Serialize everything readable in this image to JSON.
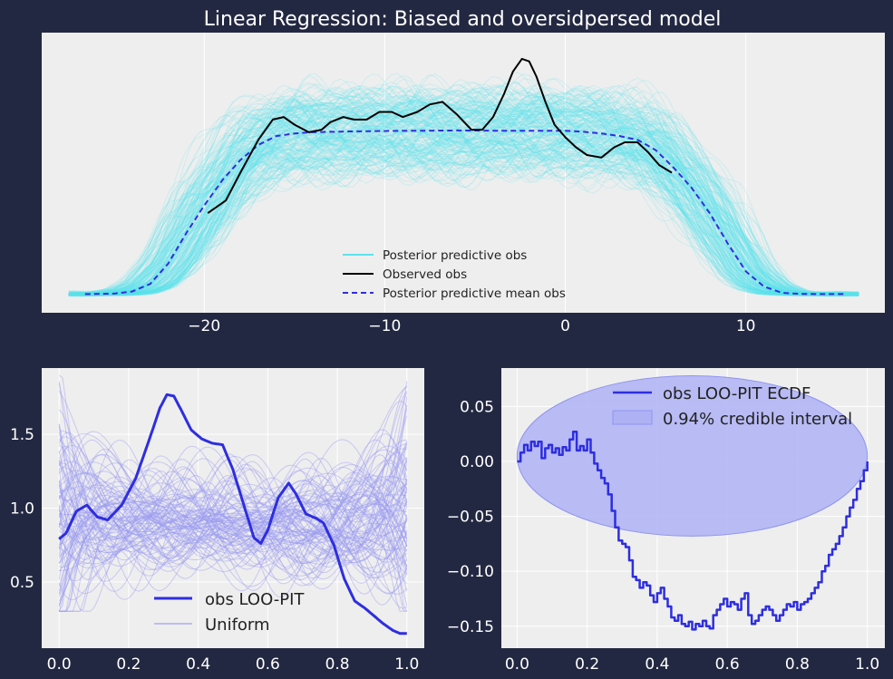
{
  "figure": {
    "title": "Linear Regression: Biased and oversidpersed model",
    "colors": {
      "background": "#232842",
      "panel": "#eeeeee",
      "grid": "#ffffff",
      "cyan": "#5de3ee",
      "observed": "#000000",
      "mean": "#2e2ee0",
      "pit": "#2e2ee0",
      "uniform": "#9a9af2",
      "band_fill": "#aeb2f5",
      "band_edge": "#8f94ef"
    }
  },
  "chart_data": [
    {
      "type": "line",
      "title": "Linear Regression: Biased and oversidpersed model",
      "xlabel": "",
      "ylabel": "",
      "xlim": [
        -29,
        17.7
      ],
      "ylim": [
        0,
        1
      ],
      "xticks": [
        -20,
        -10,
        0,
        10
      ],
      "xtick_labels": [
        "−20",
        "−10",
        "0",
        "10"
      ],
      "yticks_shown": false,
      "grid": true,
      "legend": {
        "placement": "bottom-center",
        "entries": [
          "Posterior predictive obs",
          "Observed obs",
          "Posterior predictive mean obs"
        ]
      },
      "series": [
        {
          "name": "Observed obs",
          "x": [
            -19.8,
            -18.8,
            -18,
            -17,
            -16.2,
            -15.6,
            -15,
            -14.2,
            -13.5,
            -13,
            -12.3,
            -11.7,
            -11,
            -10.3,
            -9.6,
            -9,
            -8.2,
            -7.5,
            -6.8,
            -6,
            -5.2,
            -4.6,
            -4,
            -3.4,
            -2.9,
            -2.4,
            -2,
            -1.6,
            -1.1,
            -0.6,
            0,
            0.6,
            1.2,
            2,
            2.7,
            3.3,
            4,
            4.6,
            5.2,
            5.9
          ],
          "y": [
            0.34,
            0.39,
            0.5,
            0.63,
            0.71,
            0.72,
            0.69,
            0.66,
            0.67,
            0.7,
            0.72,
            0.71,
            0.71,
            0.74,
            0.74,
            0.72,
            0.74,
            0.77,
            0.78,
            0.73,
            0.67,
            0.67,
            0.72,
            0.81,
            0.9,
            0.95,
            0.94,
            0.88,
            0.78,
            0.69,
            0.64,
            0.6,
            0.57,
            0.56,
            0.6,
            0.62,
            0.62,
            0.58,
            0.53,
            0.5
          ]
        },
        {
          "name": "Posterior predictive mean obs",
          "x": [
            -26.6,
            -25,
            -24,
            -23,
            -22,
            -21,
            -20,
            -19,
            -18,
            -17,
            -16,
            -15,
            -14,
            -12,
            -10,
            -8,
            -6,
            -4,
            -2,
            0,
            1,
            2,
            3,
            4,
            5,
            6,
            7,
            8,
            9,
            10,
            11,
            12,
            13,
            14,
            15.5
          ],
          "y": [
            0.02,
            0.022,
            0.03,
            0.06,
            0.14,
            0.26,
            0.37,
            0.47,
            0.55,
            0.61,
            0.645,
            0.655,
            0.66,
            0.663,
            0.665,
            0.666,
            0.667,
            0.666,
            0.666,
            0.666,
            0.662,
            0.655,
            0.645,
            0.63,
            0.59,
            0.52,
            0.44,
            0.34,
            0.22,
            0.11,
            0.05,
            0.025,
            0.021,
            0.02,
            0.02
          ]
        },
        {
          "name": "Posterior predictive obs",
          "count": 220,
          "note_shape": "trapezoid envelope around the mean curve"
        }
      ]
    },
    {
      "type": "line",
      "xlim": [
        -0.05,
        1.05
      ],
      "ylim": [
        0.05,
        1.95
      ],
      "xticks": [
        0.0,
        0.2,
        0.4,
        0.6,
        0.8,
        1.0
      ],
      "xtick_labels": [
        "0.0",
        "0.2",
        "0.4",
        "0.6",
        "0.8",
        "1.0"
      ],
      "yticks": [
        0.5,
        1.0,
        1.5
      ],
      "ytick_labels": [
        "0.5",
        "1.0",
        "1.5"
      ],
      "grid": true,
      "legend": {
        "placement": "bottom-center",
        "entries": [
          "obs LOO-PIT",
          "Uniform"
        ]
      },
      "series": [
        {
          "name": "obs LOO-PIT",
          "x": [
            0,
            0.02,
            0.05,
            0.08,
            0.11,
            0.14,
            0.18,
            0.22,
            0.26,
            0.29,
            0.31,
            0.33,
            0.35,
            0.38,
            0.41,
            0.44,
            0.47,
            0.5,
            0.53,
            0.56,
            0.58,
            0.6,
            0.63,
            0.66,
            0.68,
            0.71,
            0.74,
            0.76,
            0.79,
            0.82,
            0.85,
            0.88,
            0.9,
            0.93,
            0.96,
            0.98,
            1.0
          ],
          "y": [
            0.79,
            0.83,
            0.98,
            1.02,
            0.94,
            0.92,
            1.02,
            1.2,
            1.47,
            1.68,
            1.77,
            1.76,
            1.67,
            1.53,
            1.47,
            1.44,
            1.43,
            1.26,
            1.03,
            0.8,
            0.76,
            0.85,
            1.07,
            1.17,
            1.1,
            0.96,
            0.93,
            0.9,
            0.75,
            0.52,
            0.37,
            0.32,
            0.28,
            0.22,
            0.17,
            0.15,
            0.15
          ]
        },
        {
          "name": "Uniform",
          "count": 100,
          "range": [
            0.3,
            1.9
          ]
        }
      ]
    },
    {
      "type": "line",
      "xlim": [
        -0.045,
        1.05
      ],
      "ylim": [
        -0.17,
        0.085
      ],
      "xticks": [
        0.0,
        0.2,
        0.4,
        0.6,
        0.8,
        1.0
      ],
      "xtick_labels": [
        "0.0",
        "0.2",
        "0.4",
        "0.6",
        "0.8",
        "1.0"
      ],
      "yticks": [
        0.05,
        0.0,
        -0.05,
        -0.1,
        -0.15
      ],
      "ytick_labels": [
        "0.05",
        "0.00",
        "−0.05",
        "−0.10",
        "−0.15"
      ],
      "grid": true,
      "legend": {
        "placement": "top-right",
        "entries": [
          "obs LOO-PIT ECDF",
          "0.94% credible interval"
        ]
      },
      "series": [
        {
          "name": "obs LOO-PIT ECDF",
          "x": [
            0,
            0.01,
            0.02,
            0.03,
            0.04,
            0.05,
            0.06,
            0.07,
            0.08,
            0.09,
            0.1,
            0.11,
            0.12,
            0.13,
            0.14,
            0.15,
            0.16,
            0.17,
            0.18,
            0.19,
            0.2,
            0.21,
            0.22,
            0.23,
            0.24,
            0.25,
            0.26,
            0.27,
            0.28,
            0.29,
            0.3,
            0.31,
            0.32,
            0.33,
            0.34,
            0.35,
            0.36,
            0.37,
            0.38,
            0.39,
            0.4,
            0.41,
            0.42,
            0.43,
            0.44,
            0.45,
            0.46,
            0.47,
            0.48,
            0.49,
            0.5,
            0.51,
            0.52,
            0.53,
            0.54,
            0.55,
            0.56,
            0.57,
            0.58,
            0.59,
            0.6,
            0.61,
            0.62,
            0.63,
            0.64,
            0.65,
            0.66,
            0.67,
            0.68,
            0.69,
            0.7,
            0.71,
            0.72,
            0.73,
            0.74,
            0.75,
            0.76,
            0.77,
            0.78,
            0.79,
            0.8,
            0.81,
            0.82,
            0.83,
            0.84,
            0.85,
            0.86,
            0.87,
            0.88,
            0.89,
            0.9,
            0.91,
            0.92,
            0.93,
            0.94,
            0.95,
            0.96,
            0.97,
            0.98,
            0.99,
            1.0
          ],
          "y": [
            0,
            0.008,
            0.015,
            0.01,
            0.018,
            0.014,
            0.018,
            0.003,
            0.012,
            0.015,
            0.008,
            0.012,
            0.006,
            0.013,
            0.01,
            0.02,
            0.027,
            0.01,
            0.014,
            0.01,
            0.02,
            0.008,
            -0.002,
            -0.008,
            -0.015,
            -0.02,
            -0.03,
            -0.045,
            -0.06,
            -0.072,
            -0.075,
            -0.078,
            -0.09,
            -0.105,
            -0.108,
            -0.115,
            -0.11,
            -0.113,
            -0.122,
            -0.128,
            -0.12,
            -0.115,
            -0.125,
            -0.132,
            -0.142,
            -0.145,
            -0.14,
            -0.148,
            -0.15,
            -0.146,
            -0.153,
            -0.148,
            -0.15,
            -0.145,
            -0.15,
            -0.152,
            -0.14,
            -0.135,
            -0.13,
            -0.125,
            -0.132,
            -0.128,
            -0.13,
            -0.135,
            -0.125,
            -0.12,
            -0.14,
            -0.148,
            -0.145,
            -0.14,
            -0.135,
            -0.132,
            -0.135,
            -0.14,
            -0.145,
            -0.14,
            -0.135,
            -0.13,
            -0.132,
            -0.128,
            -0.135,
            -0.13,
            -0.128,
            -0.125,
            -0.12,
            -0.115,
            -0.11,
            -0.1,
            -0.095,
            -0.085,
            -0.08,
            -0.075,
            -0.068,
            -0.06,
            -0.05,
            -0.042,
            -0.035,
            -0.025,
            -0.018,
            -0.008,
            0.0
          ]
        },
        {
          "name": "0.94% credible interval",
          "shape": "ellipse",
          "center": [
            0.5,
            0.005
          ],
          "semi_axis_x": 0.5,
          "semi_axis_y": 0.073
        }
      ]
    }
  ]
}
